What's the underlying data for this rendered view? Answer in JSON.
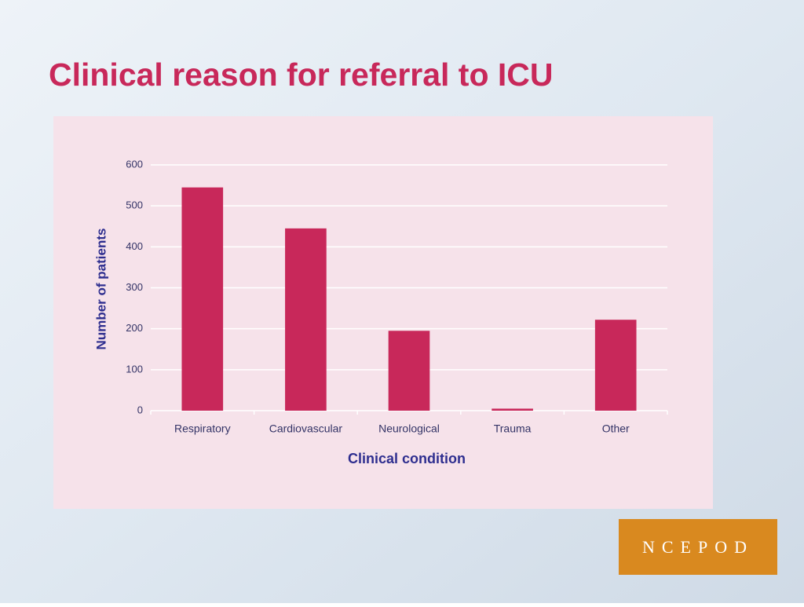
{
  "chart_data": {
    "type": "bar",
    "title": "Clinical reason for referral to ICU",
    "categories": [
      "Respiratory",
      "Cardiovascular",
      "Neurological",
      "Trauma",
      "Other"
    ],
    "values": [
      545,
      445,
      195,
      5,
      222
    ],
    "color": "#c8285a",
    "xlabel": "Clinical condition",
    "ylabel": "Number of patients",
    "ylim": [
      0,
      600
    ],
    "yticks": [
      0,
      100,
      200,
      300,
      400,
      500,
      600
    ],
    "grid": true
  },
  "logo": "NCEPOD"
}
